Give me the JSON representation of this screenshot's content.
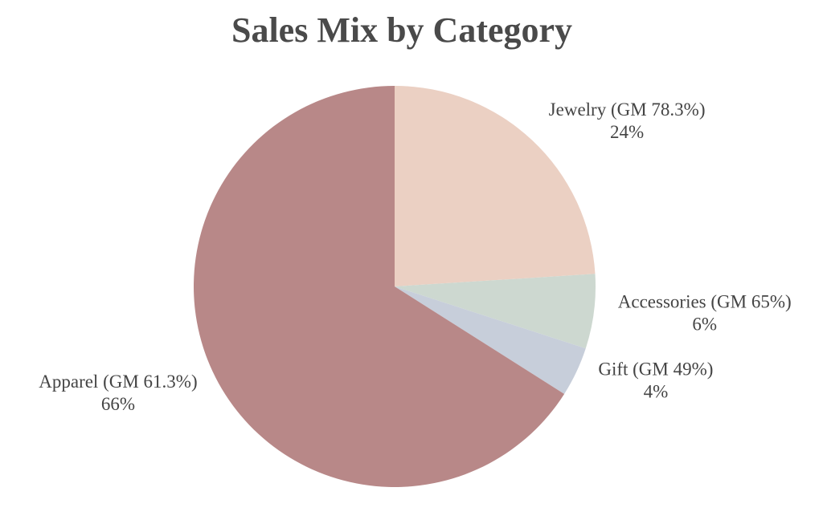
{
  "chart_data": {
    "type": "pie",
    "title": "Sales Mix by Category",
    "categories": [
      "Jewelry (GM 78.3%)",
      "Accessories (GM 65%)",
      "Gift (GM 49%)",
      "Apparel (GM 61.3%)"
    ],
    "values": [
      24,
      6,
      4,
      66
    ],
    "value_labels": [
      "24%",
      "6%",
      "4%",
      "66%"
    ],
    "colors": [
      "#ebd0c3",
      "#cdd8d0",
      "#c7ceda",
      "#b88888"
    ]
  }
}
